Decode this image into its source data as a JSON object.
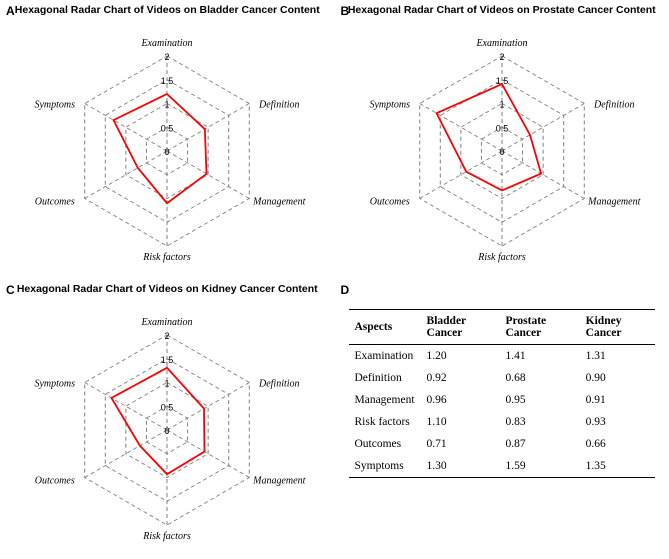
{
  "panels": {
    "A": {
      "label": "A",
      "title": "Hexagonal Radar Chart of Videos on Bladder Cancer Content",
      "chart": {
        "type": "radar-hex",
        "max": 2,
        "ticks": [
          0,
          0.5,
          1,
          1.5,
          2
        ],
        "axes": [
          "Examination",
          "Definition",
          "Management",
          "Risk factors",
          "Outcomes",
          "Symptoms"
        ],
        "values": [
          1.2,
          0.92,
          0.96,
          1.1,
          0.71,
          1.3
        ],
        "grid_color": "#808080",
        "data_color": "#ff0000",
        "background_color": "#ffffff",
        "axis_font_style": "italic",
        "axis_fontsize": 10,
        "tick_fontsize": 9,
        "line_width": 1.8,
        "dash": "4 3"
      }
    },
    "B": {
      "label": "B",
      "title": "Hexagonal Radar Chart of Videos on Prostate Cancer Content",
      "chart": {
        "type": "radar-hex",
        "max": 2,
        "ticks": [
          0,
          0.5,
          1,
          1.5,
          2
        ],
        "axes": [
          "Examination",
          "Definition",
          "Management",
          "Risk factors",
          "Outcomes",
          "Symptoms"
        ],
        "values": [
          1.41,
          0.68,
          0.95,
          0.83,
          0.87,
          1.59
        ],
        "grid_color": "#808080",
        "data_color": "#ff0000",
        "background_color": "#ffffff",
        "axis_font_style": "italic",
        "axis_fontsize": 10,
        "tick_fontsize": 9,
        "line_width": 1.8,
        "dash": "4 3"
      }
    },
    "C": {
      "label": "C",
      "title": "Hexagonal Radar Chart of Videos on Kidney Cancer Content",
      "chart": {
        "type": "radar-hex",
        "max": 2,
        "ticks": [
          0,
          0.5,
          1,
          1.5,
          2
        ],
        "axes": [
          "Examination",
          "Definition",
          "Management",
          "Risk factors",
          "Outcomes",
          "Symptoms"
        ],
        "values": [
          1.31,
          0.9,
          0.91,
          0.93,
          0.66,
          1.35
        ],
        "grid_color": "#808080",
        "data_color": "#ff0000",
        "background_color": "#ffffff",
        "axis_font_style": "italic",
        "axis_fontsize": 10,
        "tick_fontsize": 9,
        "line_width": 1.8,
        "dash": "4 3"
      }
    },
    "D": {
      "label": "D",
      "table": {
        "columns": [
          "Aspects",
          "Bladder Cancer",
          "Prostate Cancer",
          "Kidney Cancer"
        ],
        "rows": [
          [
            "Examination",
            "1.20",
            "1.41",
            "1.31"
          ],
          [
            "Definition",
            "0.92",
            "0.68",
            "0.90"
          ],
          [
            "Management",
            "0.96",
            "0.95",
            "0.91"
          ],
          [
            "Risk factors",
            "1.10",
            "0.83",
            "0.93"
          ],
          [
            "Outcomes",
            "0.71",
            "0.87",
            "0.66"
          ],
          [
            "Symptoms",
            "1.30",
            "1.59",
            "1.35"
          ]
        ],
        "header_fontweight": "bold",
        "fontsize": 11.5,
        "border_color": "#000000"
      }
    }
  }
}
